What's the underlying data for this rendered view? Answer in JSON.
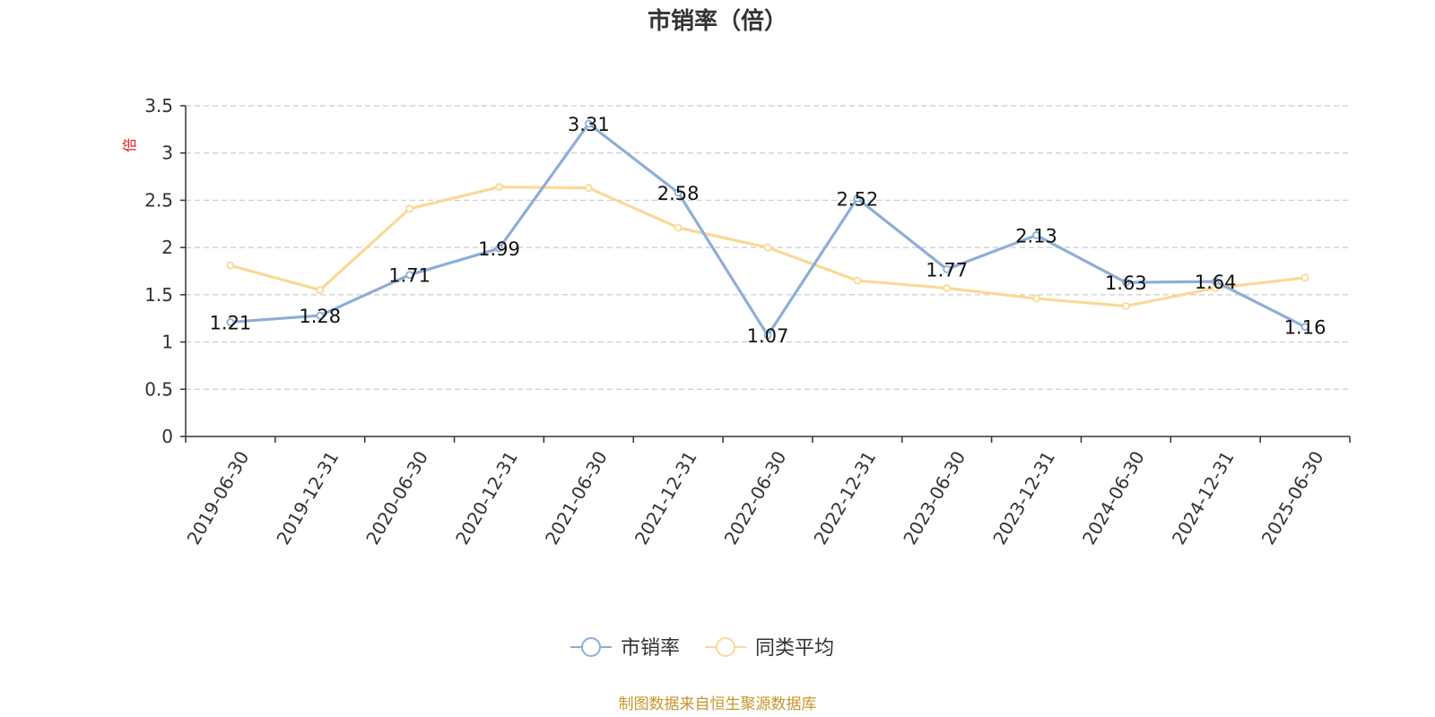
{
  "chart_data": {
    "type": "line",
    "title": "市销率（倍）",
    "ylabel": "倍",
    "ylim": [
      0,
      3.5
    ],
    "yticks": [
      "0",
      "0.5",
      "1",
      "1.5",
      "2",
      "2.5",
      "3",
      "3.5"
    ],
    "ytick_values": [
      0,
      0.5,
      1,
      1.5,
      2,
      2.5,
      3,
      3.5
    ],
    "grid": true,
    "legend_position": "bottom-center",
    "categories": [
      "2019-06-30",
      "2019-12-31",
      "2020-06-30",
      "2020-12-31",
      "2021-06-30",
      "2021-12-31",
      "2022-06-30",
      "2022-12-31",
      "2023-06-30",
      "2023-12-31",
      "2024-06-30",
      "2024-12-31",
      "2025-06-30"
    ],
    "series": [
      {
        "name": "市销率",
        "color": "#8eaed8",
        "values": [
          1.21,
          1.28,
          1.71,
          1.99,
          3.31,
          2.58,
          1.07,
          2.52,
          1.77,
          2.13,
          1.63,
          1.64,
          1.16
        ],
        "labels": [
          "1.21",
          "1.28",
          "1.71",
          "1.99",
          "3.31",
          "2.58",
          "1.07",
          "2.52",
          "1.77",
          "2.13",
          "1.63",
          "1.64",
          "1.16"
        ]
      },
      {
        "name": "同类平均",
        "color": "#fad996",
        "values": [
          1.81,
          1.55,
          2.41,
          2.64,
          2.63,
          2.21,
          2.0,
          1.65,
          1.57,
          1.46,
          1.38,
          1.57,
          1.68
        ]
      }
    ],
    "source": "制图数据来自恒生聚源数据库"
  }
}
